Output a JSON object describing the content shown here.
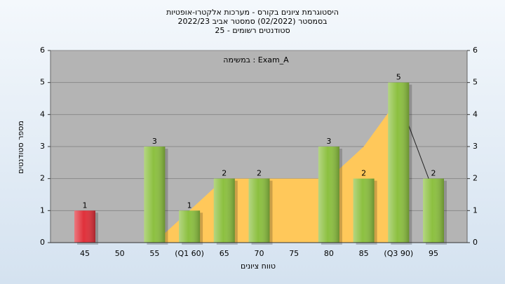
{
  "chart_data": {
    "type": "bar",
    "title": [
      "היסטוגרמת ציונים בקורס - מערכות אלקטרו-אופטיות",
      "בסמסטר  (02/2022)  סמסטר אביב 2022/23",
      "סטודנטים רשומים - 25"
    ],
    "annotation": "במשימה : Exam_A",
    "x_label": "טווח ציונים",
    "y_label": "מספר סטודנטים",
    "categories": [
      "45",
      "50",
      "55",
      "(Q1 60)",
      "65",
      "70",
      "75",
      "80",
      "85",
      "(Q3 90)",
      "95"
    ],
    "series": [
      {
        "type": "area",
        "color": "#ffc85a",
        "values": [
          null,
          null,
          0,
          1,
          2,
          2,
          2,
          2,
          3,
          4.5,
          1.6
        ]
      },
      {
        "type": "bar",
        "colors": [
          "#e0303a",
          "#8cc040",
          "#8cc040",
          "#8cc040",
          "#8cc040",
          "#8cc040",
          "#8cc040",
          "#8cc040",
          "#8cc040",
          "#8cc040",
          "#8cc040"
        ],
        "values": [
          1,
          0,
          3,
          1,
          2,
          2,
          0,
          3,
          2,
          5,
          2
        ]
      }
    ],
    "ylim": [
      0,
      6
    ],
    "yticks": [
      0,
      1,
      2,
      3,
      4,
      5,
      6
    ],
    "grid": true
  }
}
